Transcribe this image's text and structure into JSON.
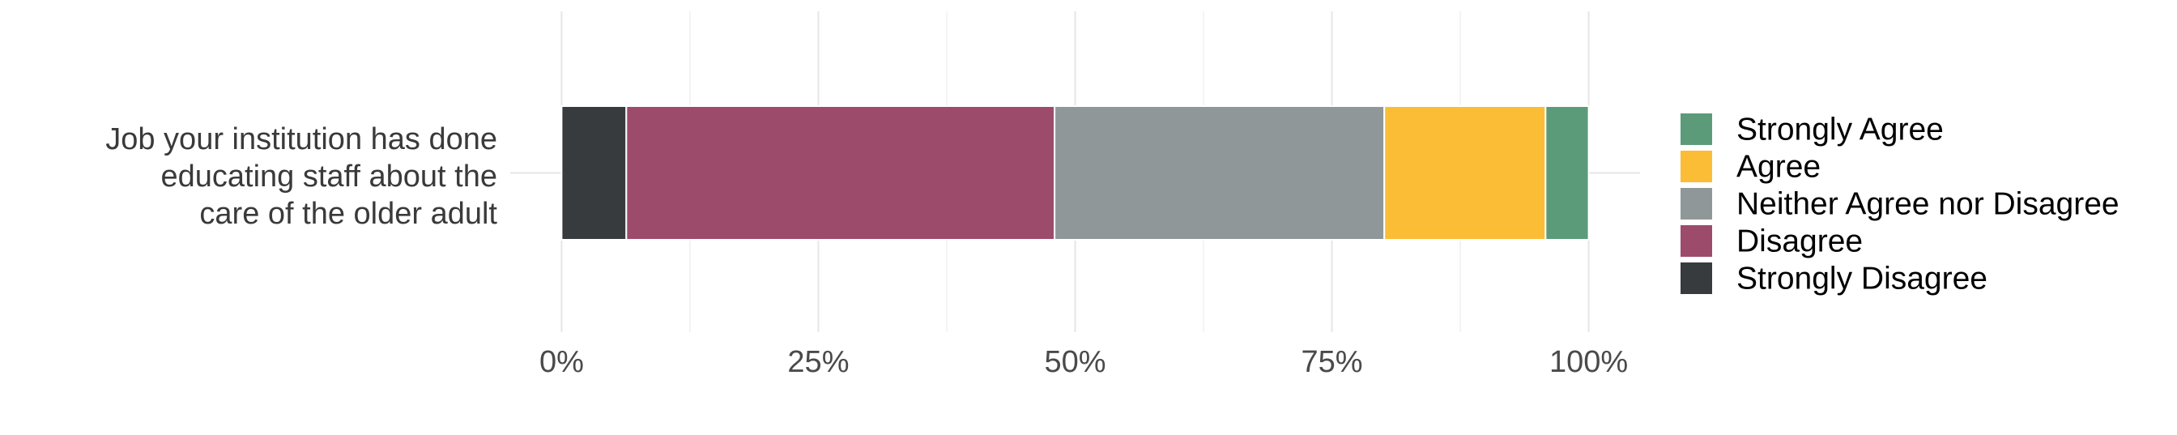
{
  "chart_data": {
    "type": "bar",
    "orientation": "horizontal",
    "stacked": true,
    "categories": [
      "Job your institution has done educating staff about the care of the older adult"
    ],
    "category_lines": [
      "Job your institution has done",
      "educating staff about the",
      "care of the older adult"
    ],
    "series": [
      {
        "name": "Strongly Disagree",
        "values": [
          0.063
        ],
        "color": "#373b3e"
      },
      {
        "name": "Disagree",
        "values": [
          0.417
        ],
        "color": "#9c4b6b"
      },
      {
        "name": "Neither Agree nor Disagree",
        "values": [
          0.321
        ],
        "color": "#909798"
      },
      {
        "name": "Agree",
        "values": [
          0.157
        ],
        "color": "#fbbd35"
      },
      {
        "name": "Strongly Agree",
        "values": [
          0.042
        ],
        "color": "#5b9b79"
      }
    ],
    "legend_order": [
      "Strongly Agree",
      "Agree",
      "Neither Agree nor Disagree",
      "Disagree",
      "Strongly Disagree"
    ],
    "x_ticks": [
      {
        "value": 0,
        "label": "0%"
      },
      {
        "value": 0.25,
        "label": "25%"
      },
      {
        "value": 0.5,
        "label": "50%"
      },
      {
        "value": 0.75,
        "label": "75%"
      },
      {
        "value": 1,
        "label": "100%"
      }
    ],
    "xlim": [
      -0.05,
      1.05
    ],
    "xlabel": "",
    "ylabel": "",
    "grid": true,
    "legend_position": "right",
    "grid_color": "#e6e6e6"
  }
}
